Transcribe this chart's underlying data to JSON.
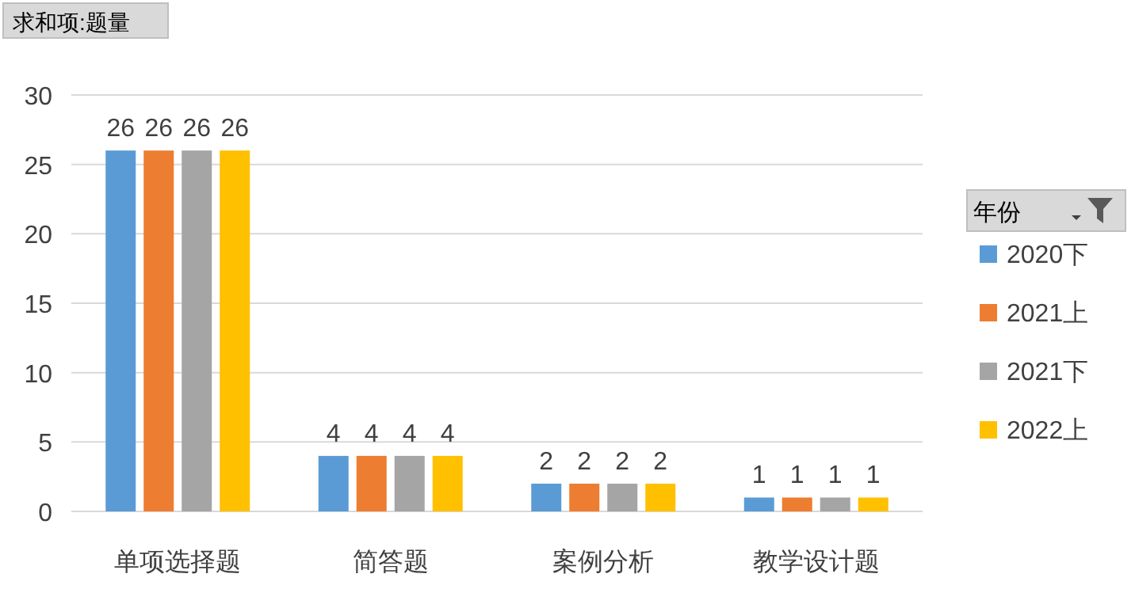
{
  "chart_data": {
    "type": "bar",
    "title": "求和项:题量",
    "legend_title": "年份",
    "categories": [
      "单项选择题",
      "简答题",
      "案例分析",
      "教学设计题"
    ],
    "series": [
      {
        "name": "2020下",
        "color": "#5b9bd5",
        "values": [
          26,
          4,
          2,
          1
        ]
      },
      {
        "name": "2021上",
        "color": "#ed7d31",
        "values": [
          26,
          4,
          2,
          1
        ]
      },
      {
        "name": "2021下",
        "color": "#a5a5a5",
        "values": [
          26,
          4,
          2,
          1
        ]
      },
      {
        "name": "2022上",
        "color": "#ffc000",
        "values": [
          26,
          4,
          2,
          1
        ]
      }
    ],
    "ylim": [
      0,
      30
    ],
    "yticks": [
      0,
      5,
      10,
      15,
      20,
      25,
      30
    ],
    "grid": "y",
    "legend": "right",
    "data_labels": true
  }
}
